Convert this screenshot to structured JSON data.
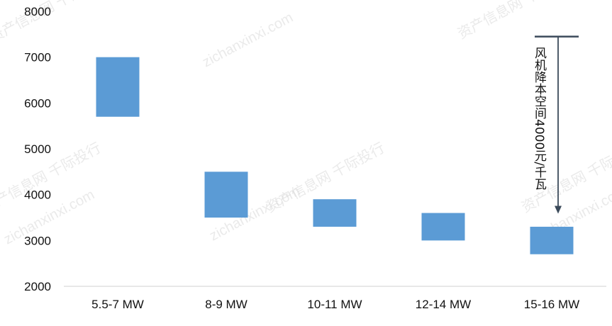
{
  "chart_data": {
    "type": "bar",
    "subtype": "floating-range",
    "categories": [
      "5.5-7 MW",
      "8-9 MW",
      "10-11 MW",
      "12-14 MW",
      "15-16 MW"
    ],
    "ranges": [
      [
        5700,
        7000
      ],
      [
        3500,
        4500
      ],
      [
        3300,
        3900
      ],
      [
        3000,
        3600
      ],
      [
        2700,
        3300
      ]
    ],
    "ylim": [
      2000,
      8000
    ],
    "yticks": [
      2000,
      3000,
      4000,
      5000,
      6000,
      7000,
      8000
    ],
    "bar_color": "#5b9bd5",
    "grid": false,
    "annotation": {
      "text": "风机降本空间4000元/千瓦",
      "from": 7450,
      "to": 3600,
      "color": "#3b4a5a"
    },
    "watermarks": [
      "资产信息网 千际投行",
      "zichanxinxi.com"
    ]
  }
}
